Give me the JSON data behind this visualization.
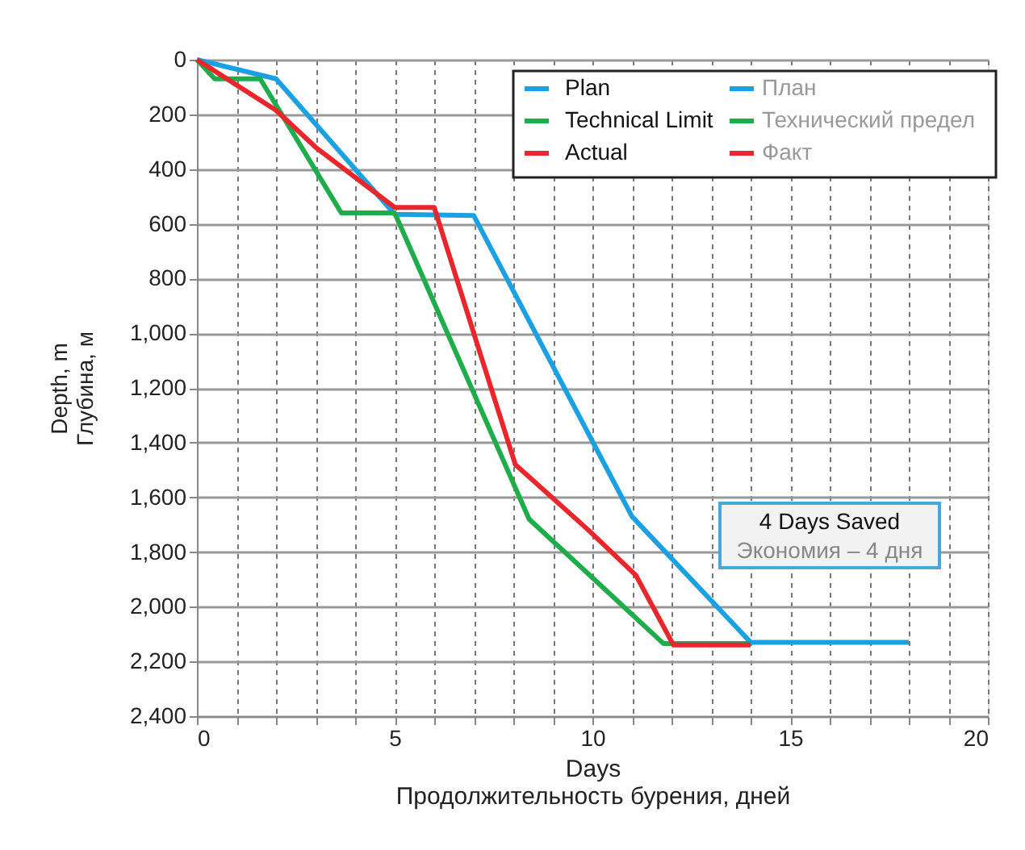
{
  "chart_data": {
    "type": "line",
    "xlabel": "Days\nПродолжительность бурения, дней",
    "ylabel": "Depth, m\nГлубина, м",
    "series": [
      {
        "name": "Plan",
        "color": "#1ba1e2",
        "x": [
          0,
          2,
          5,
          7,
          11,
          14,
          18
        ],
        "values": [
          0,
          70,
          565,
          570,
          1670,
          2130,
          2130
        ]
      },
      {
        "name": "Technical Limit",
        "color": "#1fad4b",
        "x": [
          0,
          0.45,
          1.6,
          3.65,
          5,
          8.4,
          11.8,
          14
        ],
        "values": [
          0,
          70,
          70,
          560,
          560,
          1680,
          2135,
          2135
        ]
      },
      {
        "name": "Actual",
        "color": "#e8262c",
        "x": [
          0,
          2,
          3,
          5,
          6,
          7,
          8.05,
          9.9,
          11.1,
          12.05,
          14
        ],
        "values": [
          0,
          185,
          320,
          540,
          540,
          1000,
          1480,
          1720,
          1885,
          2140,
          2140
        ]
      }
    ],
    "annotations": [
      "4 Days Saved",
      "Экономия – 4 дня",
      "План",
      "Технический предел",
      "Факт"
    ],
    "xlim": [
      0,
      20
    ],
    "xticks": [
      0,
      {
        "value": 1,
        "label": null
      },
      {
        "value": 2,
        "label": null
      },
      {
        "value": 3,
        "label": null
      },
      {
        "value": 4,
        "label": null
      },
      5,
      {
        "value": 6,
        "label": null
      },
      {
        "value": 7,
        "label": null
      },
      {
        "value": 8,
        "label": null
      },
      {
        "value": 9,
        "label": null
      },
      10,
      {
        "value": 11,
        "label": null
      },
      {
        "value": 12,
        "label": null
      },
      {
        "value": 13,
        "label": null
      },
      {
        "value": 14,
        "label": null
      },
      15,
      {
        "value": 16,
        "label": null
      },
      {
        "value": 17,
        "label": null
      },
      {
        "value": 18,
        "label": null
      },
      {
        "value": 19,
        "label": null
      },
      20
    ],
    "ylim": [
      2400,
      0
    ],
    "yticks": [
      0,
      200,
      400,
      600,
      800,
      {
        "value": 1000,
        "label": "1,000"
      },
      {
        "value": 1200,
        "label": "1,200"
      },
      {
        "value": 1400,
        "label": "1,400"
      },
      {
        "value": 1600,
        "label": "1,600"
      },
      {
        "value": 1800,
        "label": "1,800"
      },
      {
        "value": 2000,
        "label": "2,000"
      },
      {
        "value": 2200,
        "label": "2,200"
      },
      {
        "value": 2400,
        "label": "2,400"
      }
    ],
    "grid": true,
    "legend": "top right",
    "line_style": "solid"
  }
}
